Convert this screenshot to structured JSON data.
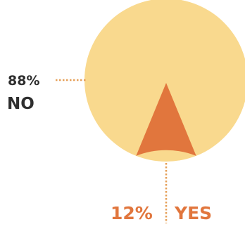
{
  "chart_data": {
    "type": "pie",
    "title": "",
    "slices": [
      {
        "label": "YES",
        "value": 12,
        "display": "12%",
        "color": "#e1763d"
      },
      {
        "label": "NO",
        "value": 88,
        "display": "88%",
        "color": "#f9d98e"
      }
    ],
    "legend": "none",
    "label_style": "leader lines with dotted connectors"
  },
  "colors": {
    "yes_text": "#e1763d",
    "no_text": "#2e2e2e",
    "leader": "#e6a059",
    "background": "#ffffff"
  }
}
